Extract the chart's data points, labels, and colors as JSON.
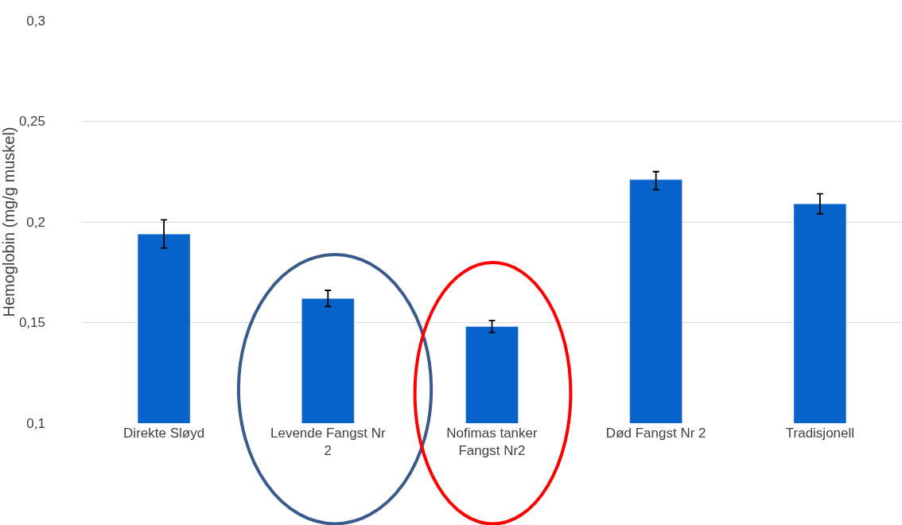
{
  "chart_data": {
    "type": "bar",
    "ylabel": "Hemoglobin (mg/g muskel)",
    "categories": [
      "Direkte Sløyd",
      "Levende Fangst Nr 2",
      "Nofimas tanker Fangst Nr2",
      "Død Fangst Nr 2",
      "Tradisjonell"
    ],
    "values": [
      0.194,
      0.162,
      0.148,
      0.221,
      0.209
    ],
    "errors": [
      [
        0.187,
        0.201
      ],
      [
        0.158,
        0.166
      ],
      [
        0.145,
        0.151
      ],
      [
        0.216,
        0.225
      ],
      [
        0.204,
        0.214
      ]
    ],
    "color": "#0563c9",
    "ylim": [
      0.1,
      0.3
    ],
    "yticks": [
      {
        "value": 0.1,
        "label": "0,1"
      },
      {
        "value": 0.15,
        "label": "0,15"
      },
      {
        "value": 0.2,
        "label": "0,2"
      },
      {
        "value": 0.25,
        "label": "0,25"
      },
      {
        "value": 0.3,
        "label": "0,3"
      }
    ],
    "grid": "y",
    "legend": false
  }
}
